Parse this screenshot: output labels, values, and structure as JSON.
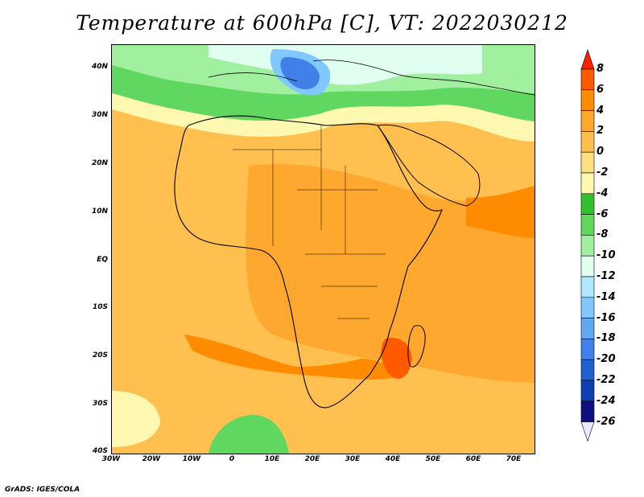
{
  "title": "Temperature at 600hPa [C], VT: 2022030212",
  "credit": "GrADS: IGES/COLA",
  "map": {
    "lon_range": [
      -30,
      75
    ],
    "lat_range": [
      -40,
      45
    ],
    "lat_labels": [
      "40N",
      "30N",
      "20N",
      "10N",
      "EQ",
      "10S",
      "20S",
      "30S",
      "40S"
    ],
    "lon_labels": [
      "30W",
      "20W",
      "10W",
      "0",
      "10E",
      "20E",
      "30E",
      "40E",
      "50E",
      "60E",
      "70E"
    ]
  },
  "colorbar": {
    "labels": [
      "8",
      "6",
      "4",
      "2",
      "0",
      "-2",
      "-4",
      "-6",
      "-8",
      "-10",
      "-12",
      "-14",
      "-16",
      "-18",
      "-20",
      "-22",
      "-24",
      "-26"
    ],
    "colors": [
      "#ff2000",
      "#ff5a00",
      "#ff8c00",
      "#ffa830",
      "#ffc050",
      "#ffe080",
      "#fff8b0",
      "#30c030",
      "#60d860",
      "#a0f0a0",
      "#e0fff0",
      "#b0e8ff",
      "#80c8ff",
      "#60a8f0",
      "#4080e8",
      "#2060d0",
      "#1040b0",
      "#101080"
    ]
  }
}
